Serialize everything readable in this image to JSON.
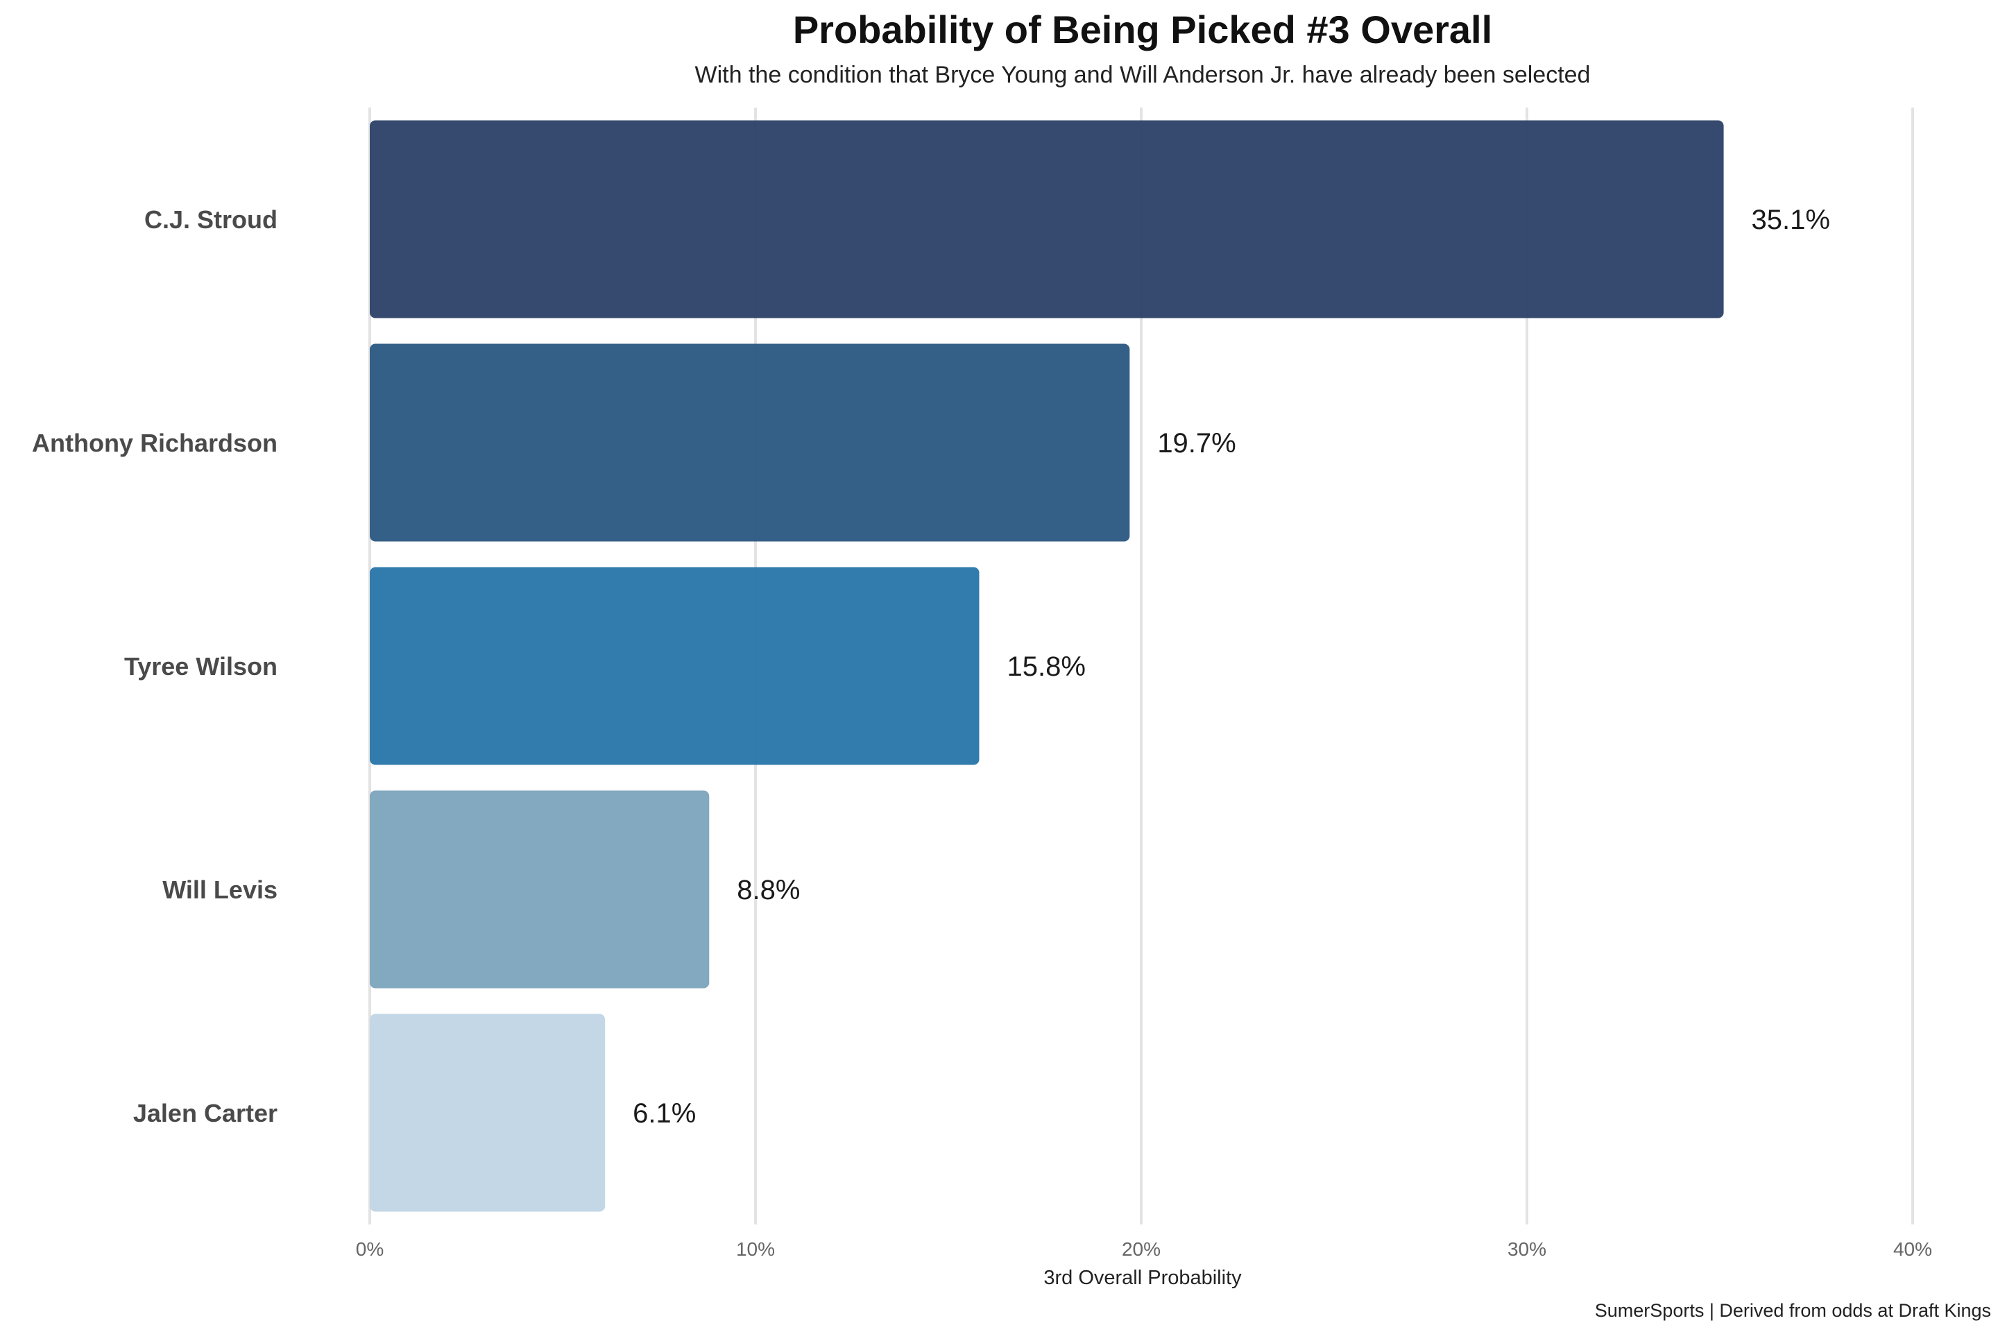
{
  "chart_data": {
    "type": "bar",
    "orientation": "horizontal",
    "title": "Probability of Being Picked #3 Overall",
    "subtitle": "With the condition that Bryce Young and Will Anderson Jr. have already been selected",
    "xlabel": "3rd Overall Probability",
    "ylabel": "",
    "caption": "SumerSports | Derived from odds at Draft Kings",
    "xlim": [
      0,
      40
    ],
    "xticks": [
      0,
      10,
      20,
      30,
      40
    ],
    "xtick_labels": [
      "0%",
      "10%",
      "20%",
      "30%",
      "40%"
    ],
    "grid": "vertical",
    "legend": "none",
    "categories": [
      "C.J. Stroud",
      "Anthony Richardson",
      "Tyree Wilson",
      "Will Levis",
      "Jalen Carter"
    ],
    "values": [
      35.1,
      19.7,
      15.8,
      8.8,
      6.1
    ],
    "value_labels": [
      "35.1%",
      "19.7%",
      "15.8%",
      "8.8%",
      "6.1%"
    ],
    "colors": [
      "#2e4469",
      "#2d5a83",
      "#2a77aa",
      "#7ea6bd",
      "#c1d6e5"
    ]
  }
}
